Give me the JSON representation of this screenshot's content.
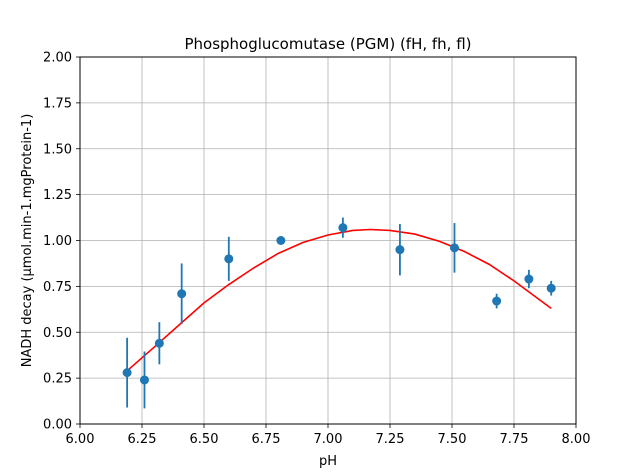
{
  "chart_data": {
    "type": "scatter",
    "title": "Phosphoglucomutase (PGM) (fH, fh, fl)",
    "xlabel": "pH",
    "ylabel": "NADH decay (μmol.min-1.mgProtein-1)",
    "xlim": [
      6.0,
      8.0
    ],
    "ylim": [
      0.0,
      2.0
    ],
    "xticks": [
      "6.00",
      "6.25",
      "6.50",
      "6.75",
      "7.00",
      "7.25",
      "7.50",
      "7.75",
      "8.00"
    ],
    "yticks": [
      "0.00",
      "0.25",
      "0.50",
      "0.75",
      "1.00",
      "1.25",
      "1.50",
      "1.75",
      "2.00"
    ],
    "grid": true,
    "marker_color": "#1f77b4",
    "fit_color": "#ff0000",
    "points": [
      {
        "x": 6.19,
        "y": 0.28,
        "err": 0.19
      },
      {
        "x": 6.26,
        "y": 0.24,
        "err": 0.155
      },
      {
        "x": 6.32,
        "y": 0.44,
        "err": 0.115
      },
      {
        "x": 6.41,
        "y": 0.71,
        "err": 0.165
      },
      {
        "x": 6.6,
        "y": 0.9,
        "err": 0.12
      },
      {
        "x": 6.81,
        "y": 1.0,
        "err": 0.01
      },
      {
        "x": 7.06,
        "y": 1.07,
        "err": 0.055
      },
      {
        "x": 7.29,
        "y": 0.95,
        "err": 0.14
      },
      {
        "x": 7.51,
        "y": 0.96,
        "err": 0.135
      },
      {
        "x": 7.68,
        "y": 0.67,
        "err": 0.04
      },
      {
        "x": 7.81,
        "y": 0.79,
        "err": 0.05
      },
      {
        "x": 7.9,
        "y": 0.74,
        "err": 0.04
      }
    ],
    "fit_curve": {
      "x": [
        6.19,
        6.3,
        6.4,
        6.5,
        6.6,
        6.7,
        6.8,
        6.9,
        7.0,
        7.1,
        7.17,
        7.25,
        7.35,
        7.45,
        7.55,
        7.65,
        7.75,
        7.85,
        7.9
      ],
      "y": [
        0.29,
        0.42,
        0.54,
        0.66,
        0.76,
        0.85,
        0.93,
        0.99,
        1.03,
        1.055,
        1.06,
        1.055,
        1.035,
        0.995,
        0.94,
        0.87,
        0.78,
        0.68,
        0.63
      ]
    }
  }
}
